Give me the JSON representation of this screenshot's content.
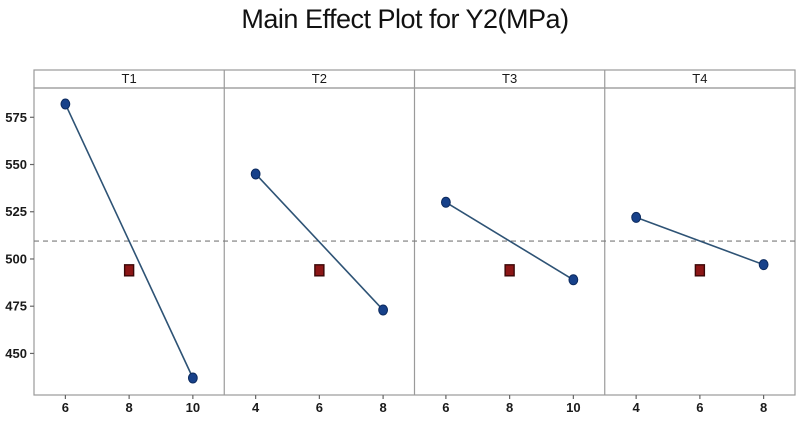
{
  "chart_data": {
    "type": "line",
    "title": "Main Effect Plot for Y2(MPa)",
    "subtitle": "",
    "ylabel": "",
    "xlabel": "",
    "y_ticks": [
      450,
      475,
      500,
      525,
      550,
      575
    ],
    "ylim": [
      428,
      590.5
    ],
    "mean_line": 509.5,
    "grid": false,
    "legend": "none",
    "panels": [
      {
        "label": "T1",
        "levels": [
          6,
          8,
          10
        ],
        "endpoints": {
          "x": [
            6,
            10
          ],
          "y": [
            582,
            437
          ]
        },
        "center": {
          "x": 8,
          "y": 494
        }
      },
      {
        "label": "T2",
        "levels": [
          4,
          6,
          8
        ],
        "endpoints": {
          "x": [
            4,
            8
          ],
          "y": [
            545,
            473
          ]
        },
        "center": {
          "x": 6,
          "y": 494
        }
      },
      {
        "label": "T3",
        "levels": [
          6,
          8,
          10
        ],
        "endpoints": {
          "x": [
            6,
            10
          ],
          "y": [
            530,
            489
          ]
        },
        "center": {
          "x": 8,
          "y": 494
        }
      },
      {
        "label": "T4",
        "levels": [
          4,
          6,
          8
        ],
        "endpoints": {
          "x": [
            4,
            8
          ],
          "y": [
            522,
            497
          ]
        },
        "center": {
          "x": 6,
          "y": 494
        }
      }
    ],
    "colors": {
      "point": "#17418a",
      "point_border": "#0c2a5e",
      "line": "#2e5375",
      "center_point": "#8c1616",
      "center_point_border": "#3c0808",
      "frame": "#9a9a9a",
      "mean_dash": "#7a7a7a",
      "tick": "#666666",
      "text": "#1a1a1a",
      "background": "#ffffff"
    }
  }
}
